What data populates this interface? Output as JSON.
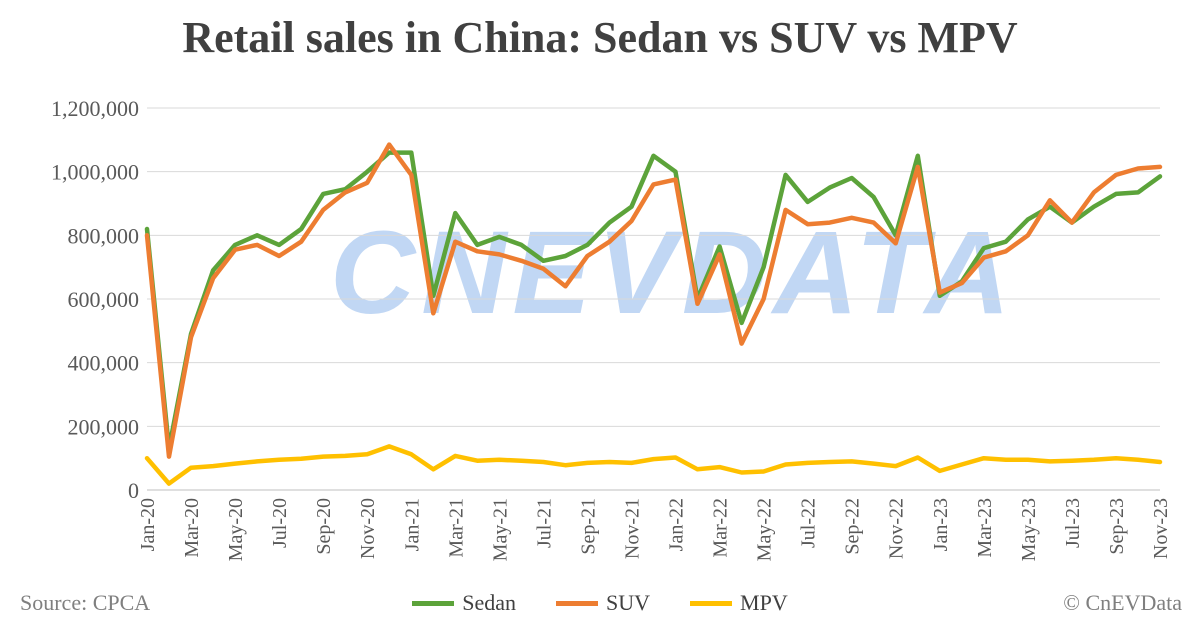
{
  "title": "Retail sales in China: Sedan vs SUV vs MPV",
  "source": "Source: CPCA",
  "credit": "© CnEVData",
  "watermark": "CNEVDATA",
  "chart_data": {
    "type": "line",
    "title": "Retail sales in China: Sedan vs SUV vs MPV",
    "ylim": [
      0,
      1200000
    ],
    "yticks": [
      0,
      200000,
      400000,
      600000,
      800000,
      1000000,
      1200000
    ],
    "ytick_labels": [
      "0",
      "200,000",
      "400,000",
      "600,000",
      "800,000",
      "1,000,000",
      "1,200,000"
    ],
    "grid": true,
    "legend": "bottom",
    "x": [
      "Jan-20",
      "Feb-20",
      "Mar-20",
      "Apr-20",
      "May-20",
      "Jun-20",
      "Jul-20",
      "Aug-20",
      "Sep-20",
      "Oct-20",
      "Nov-20",
      "Dec-20",
      "Jan-21",
      "Feb-21",
      "Mar-21",
      "Apr-21",
      "May-21",
      "Jun-21",
      "Jul-21",
      "Aug-21",
      "Sep-21",
      "Oct-21",
      "Nov-21",
      "Dec-21",
      "Jan-22",
      "Feb-22",
      "Mar-22",
      "Apr-22",
      "May-22",
      "Jun-22",
      "Jul-22",
      "Aug-22",
      "Sep-22",
      "Oct-22",
      "Nov-22",
      "Dec-22",
      "Jan-23",
      "Feb-23",
      "Mar-23",
      "Apr-23",
      "May-23",
      "Jun-23",
      "Jul-23",
      "Aug-23",
      "Sep-23",
      "Oct-23",
      "Nov-23"
    ],
    "x_tick_labels": [
      "Jan-20",
      "Mar-20",
      "May-20",
      "Jul-20",
      "Sep-20",
      "Nov-20",
      "Jan-21",
      "Mar-21",
      "May-21",
      "Jul-21",
      "Sep-21",
      "Nov-21",
      "Jan-22",
      "Mar-22",
      "May-22",
      "Jul-22",
      "Sep-22",
      "Nov-22",
      "Jan-23",
      "Mar-23",
      "May-23",
      "Jul-23",
      "Sep-23",
      "Nov-23"
    ],
    "series": [
      {
        "name": "Sedan",
        "color": "#5ca33a",
        "values": [
          820000,
          130000,
          490000,
          690000,
          770000,
          800000,
          770000,
          820000,
          930000,
          945000,
          1000000,
          1060000,
          1060000,
          610000,
          870000,
          770000,
          795000,
          770000,
          720000,
          735000,
          770000,
          840000,
          890000,
          1050000,
          1000000,
          600000,
          765000,
          525000,
          700000,
          990000,
          905000,
          950000,
          980000,
          920000,
          800000,
          1050000,
          610000,
          655000,
          760000,
          780000,
          850000,
          890000,
          840000,
          890000,
          930000,
          935000,
          985000
        ]
      },
      {
        "name": "SUV",
        "color": "#ed7d31",
        "values": [
          800000,
          105000,
          480000,
          665000,
          755000,
          770000,
          735000,
          780000,
          880000,
          935000,
          965000,
          1085000,
          990000,
          555000,
          780000,
          750000,
          740000,
          720000,
          695000,
          640000,
          735000,
          780000,
          845000,
          960000,
          975000,
          585000,
          740000,
          460000,
          600000,
          880000,
          835000,
          840000,
          855000,
          840000,
          775000,
          1015000,
          620000,
          650000,
          730000,
          750000,
          800000,
          910000,
          840000,
          935000,
          990000,
          1010000,
          1015000
        ]
      },
      {
        "name": "MPV",
        "color": "#ffc000",
        "values": [
          100000,
          20000,
          70000,
          75000,
          83000,
          90000,
          95000,
          98000,
          105000,
          107000,
          112000,
          137000,
          112000,
          65000,
          107000,
          92000,
          95000,
          92000,
          88000,
          78000,
          85000,
          88000,
          85000,
          97000,
          102000,
          65000,
          72000,
          55000,
          58000,
          80000,
          85000,
          88000,
          90000,
          83000,
          75000,
          102000,
          60000,
          80000,
          100000,
          95000,
          95000,
          90000,
          92000,
          95000,
          100000,
          95000,
          88000
        ]
      }
    ]
  }
}
